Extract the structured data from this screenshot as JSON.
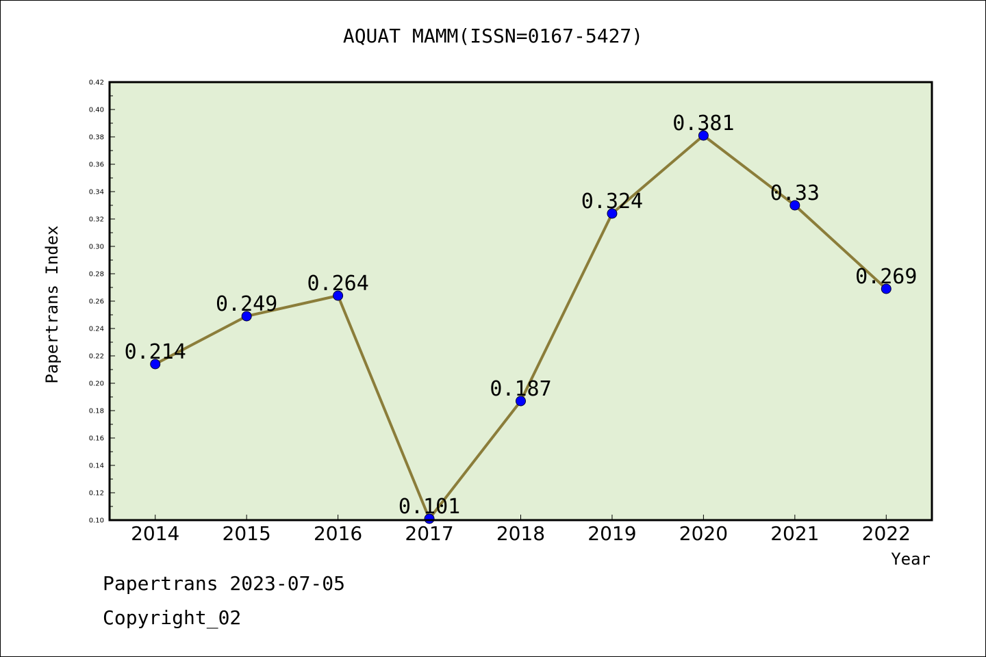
{
  "chart_data": {
    "type": "line",
    "title": "AQUAT MAMM(ISSN=0167-5427)",
    "xlabel": "Year",
    "ylabel": "Papertrans Index",
    "x": [
      "2014",
      "2015",
      "2016",
      "2017",
      "2018",
      "2019",
      "2020",
      "2021",
      "2022"
    ],
    "series": [
      {
        "values": [
          0.214,
          0.249,
          0.264,
          0.101,
          0.187,
          0.324,
          0.381,
          0.33,
          0.269
        ],
        "labels": [
          "0.214",
          "0.249",
          "0.264",
          "0.101",
          "0.187",
          "0.324",
          "0.381",
          "0.33",
          "0.269"
        ],
        "line_color": "#8b7d3a",
        "marker_color": "#0000ff"
      }
    ],
    "ylim": [
      0.1,
      0.42
    ],
    "yticks": [
      "0.10",
      "0.12",
      "0.14",
      "0.16",
      "0.18",
      "0.20",
      "0.22",
      "0.24",
      "0.26",
      "0.28",
      "0.30",
      "0.32",
      "0.34",
      "0.36",
      "0.38",
      "0.40",
      "0.42"
    ],
    "plot_background": "#e2efd5",
    "grid": false,
    "legend": "none"
  },
  "footer": {
    "line1": "Papertrans 2023-07-05",
    "line2": "Copyright_02"
  }
}
